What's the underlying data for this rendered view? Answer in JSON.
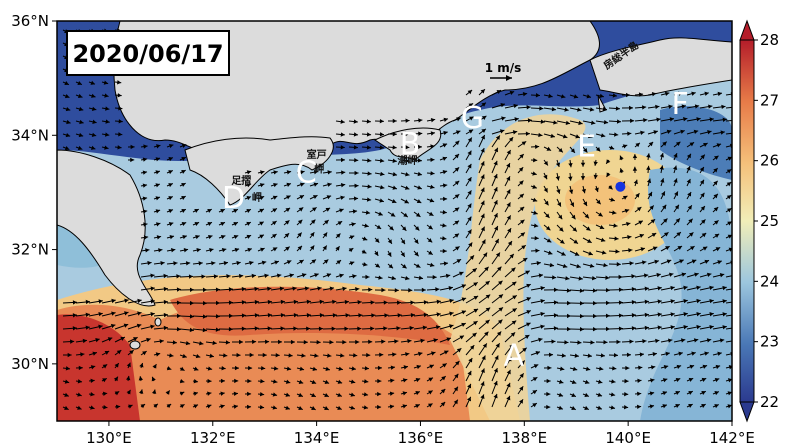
{
  "date_label": "2020/06/17",
  "scale_label": "1 m/s",
  "lat_ticks": [
    {
      "value": 36,
      "label": "36°N"
    },
    {
      "value": 34,
      "label": "34°N"
    },
    {
      "value": 32,
      "label": "32°N"
    },
    {
      "value": 30,
      "label": "30°N"
    }
  ],
  "lon_ticks": [
    {
      "value": 130,
      "label": "130°E"
    },
    {
      "value": 132,
      "label": "132°E"
    },
    {
      "value": 134,
      "label": "134°E"
    },
    {
      "value": 136,
      "label": "136°E"
    },
    {
      "value": 138,
      "label": "138°E"
    },
    {
      "value": 140,
      "label": "140°E"
    },
    {
      "value": 142,
      "label": "142°E"
    }
  ],
  "colorbar": {
    "ticks": [
      22,
      23,
      24,
      25,
      26,
      27,
      28
    ],
    "colors": [
      "#2b3a8f",
      "#4a78b6",
      "#9cc6de",
      "#f1eeb8",
      "#f5c07a",
      "#e77b48",
      "#b41d2a"
    ]
  },
  "markers": [
    {
      "label": "A",
      "lon": 137.8,
      "lat": 30.15
    },
    {
      "label": "B",
      "lon": 135.8,
      "lat": 33.85
    },
    {
      "label": "C",
      "lon": 133.8,
      "lat": 33.35
    },
    {
      "label": "D",
      "lon": 132.4,
      "lat": 32.9
    },
    {
      "label": "E",
      "lon": 139.2,
      "lat": 33.8
    },
    {
      "label": "F",
      "lon": 141.0,
      "lat": 34.55
    },
    {
      "label": "G",
      "lon": 137.0,
      "lat": 34.3
    }
  ],
  "place_labels": [
    {
      "text": "室戸",
      "lon": 134.0,
      "lat": 33.6
    },
    {
      "text": "岬",
      "lon": 134.05,
      "lat": 33.35
    },
    {
      "text": "足摺",
      "lon": 132.55,
      "lat": 33.15
    },
    {
      "text": "岬",
      "lon": 132.85,
      "lat": 32.85
    },
    {
      "text": "潮岬",
      "lon": 135.75,
      "lat": 33.5
    },
    {
      "text": "房総半島",
      "lon": 139.9,
      "lat": 35.35
    }
  ],
  "point": {
    "lon": 139.85,
    "lat": 33.1,
    "color": "#1533e0"
  },
  "map_extent": {
    "lon_min": 129,
    "lon_max": 142,
    "lat_min": 29,
    "lat_max": 36
  }
}
